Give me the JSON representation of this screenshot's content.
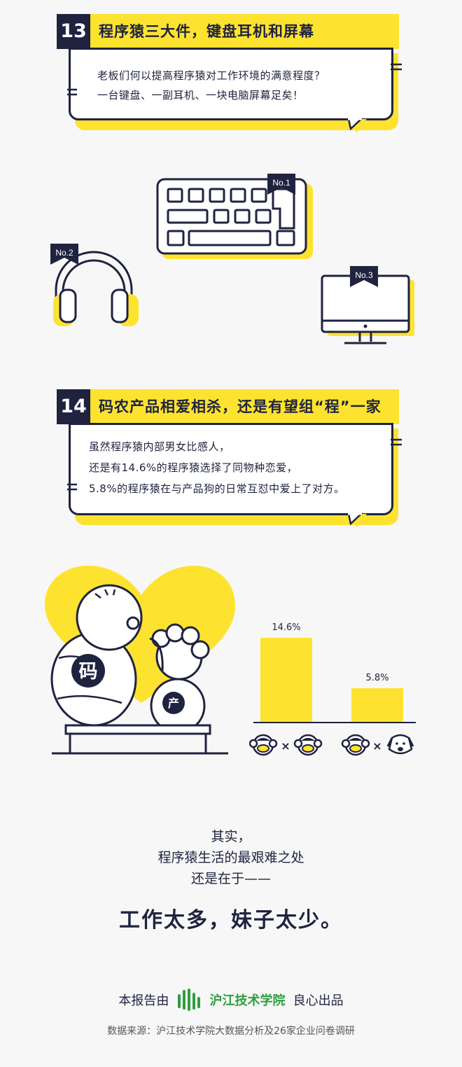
{
  "section13": {
    "number": "13",
    "title": "程序猿三大件，键盘耳机和屏幕",
    "lines": [
      "老板们何以提高程序猿对工作环境的满意程度？",
      "一台键盘、一副耳机、一块电脑屏幕足矣！"
    ],
    "tags": {
      "keyboard": "No.1",
      "headphones": "No.2",
      "monitor": "No.3"
    }
  },
  "section14": {
    "number": "14",
    "title": "码农产品相爱相杀，还是有望组“程”一家",
    "lines": [
      "虽然程序猿内部男女比感人，",
      "还是有14.6%的程序猿选择了同物种恋爱，",
      "5.8%的程序猿在与产品狗的日常互怼中爱上了对方。"
    ],
    "badges": {
      "coder": "码",
      "product": "产"
    }
  },
  "chart_data": {
    "type": "bar",
    "categories": [
      "程序猿 × 程序猿",
      "程序猿 × 产品狗"
    ],
    "values": [
      14.6,
      5.8
    ],
    "labels": [
      "14.6%",
      "5.8%"
    ],
    "ylim": [
      0,
      14.6
    ],
    "bar_color": "#fde330"
  },
  "closing": {
    "lines": [
      "其实，",
      "程序猿生活的最艰难之处",
      "还是在于——"
    ],
    "emphasis": "工作太多，妹子太少。"
  },
  "footer": {
    "prefix": "本报告由",
    "brand": "沪江技术学院",
    "suffix": "良心出品",
    "source": "数据来源：沪江技术学院大数据分析及26家企业问卷调研"
  },
  "colors": {
    "yellow": "#fde330",
    "navy": "#1f2340",
    "brand_green": "#2e9e3f"
  },
  "icons": [
    "keyboard-icon",
    "headphones-icon",
    "monitor-icon",
    "monkey-icon",
    "dog-icon",
    "hujiang-logo-icon"
  ]
}
